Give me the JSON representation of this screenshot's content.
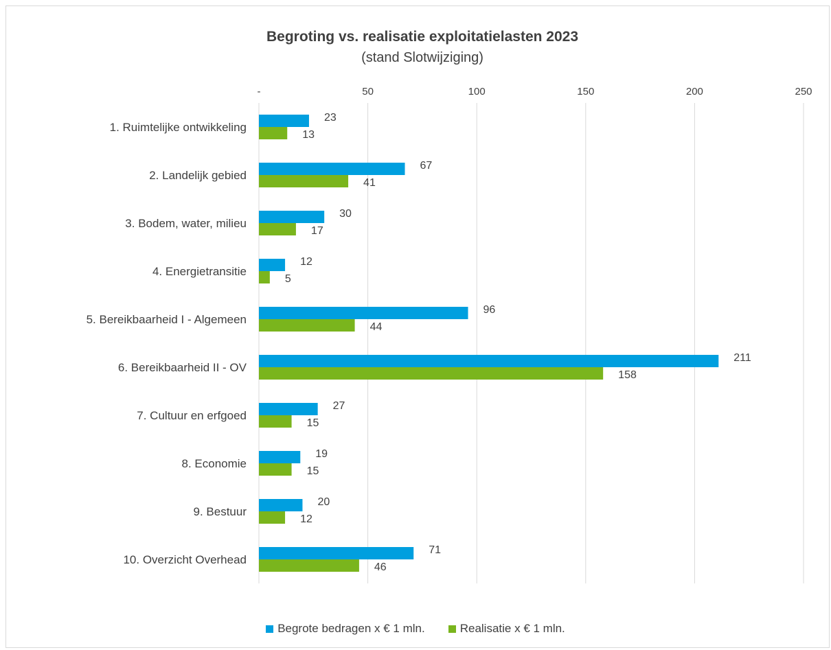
{
  "chart_data": {
    "type": "bar",
    "orientation": "horizontal",
    "title": "Begroting vs. realisatie exploitatielasten 2023",
    "subtitle": "(stand Slotwijziging)",
    "categories": [
      "1. Ruimtelijke ontwikkeling",
      "2. Landelijk gebied",
      "3. Bodem, water, milieu",
      "4. Energietransitie",
      "5. Bereikbaarheid I - Algemeen",
      "6. Bereikbaarheid II - OV",
      "7. Cultuur en erfgoed",
      "8. Economie",
      "9. Bestuur",
      "10. Overzicht Overhead"
    ],
    "series": [
      {
        "name": "Begrote bedragen x € 1 mln.",
        "color": "#009FDF",
        "values": [
          23,
          67,
          30,
          12,
          96,
          211,
          27,
          19,
          20,
          71
        ]
      },
      {
        "name": "Realisatie x € 1 mln.",
        "color": "#7AB51D",
        "values": [
          13,
          41,
          17,
          5,
          44,
          158,
          15,
          15,
          12,
          46
        ]
      }
    ],
    "xlim": [
      0,
      250
    ],
    "x_ticks": [
      0,
      50,
      100,
      150,
      200,
      250
    ],
    "x_tick_labels": [
      "-",
      "50",
      "100",
      "150",
      "200",
      "250"
    ],
    "x_axis_position": "top",
    "grid": true,
    "legend_position": "bottom"
  }
}
